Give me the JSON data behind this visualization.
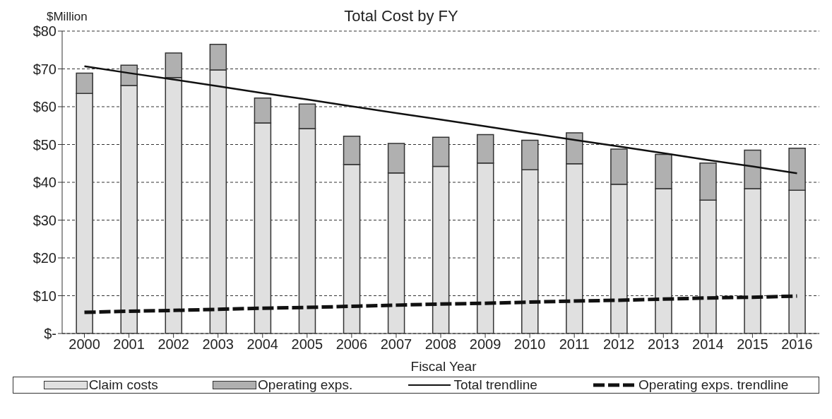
{
  "chart_data": {
    "type": "bar",
    "title": "Total Cost by FY",
    "ylabel": "$Million",
    "xlabel": "Fiscal Year",
    "categories": [
      "2000",
      "2001",
      "2002",
      "2003",
      "2004",
      "2005",
      "2006",
      "2007",
      "2008",
      "2009",
      "2010",
      "2011",
      "2012",
      "2013",
      "2014",
      "2015",
      "2016"
    ],
    "stacked": true,
    "series": [
      {
        "name": "Claim costs",
        "color": "#e0e0e0",
        "values": [
          63.5,
          65.6,
          67.7,
          69.7,
          55.7,
          54.2,
          44.7,
          42.5,
          44.2,
          45.1,
          43.3,
          44.9,
          39.5,
          38.3,
          35.3,
          38.3,
          37.9
        ]
      },
      {
        "name": "Operating exps.",
        "color": "#b0b0b0",
        "values": [
          5.4,
          5.4,
          6.5,
          6.8,
          6.6,
          6.5,
          7.5,
          7.8,
          7.7,
          7.5,
          7.8,
          8.2,
          9.3,
          9.1,
          9.8,
          10.2,
          11.1
        ]
      },
      {
        "name": "Total trendline",
        "type": "line",
        "color": "#111111",
        "line_style": "solid",
        "values": [
          70.7,
          68.9,
          67.2,
          65.4,
          63.6,
          61.9,
          60.1,
          58.3,
          56.6,
          54.8,
          53.0,
          51.2,
          49.5,
          47.7,
          45.9,
          44.2,
          42.4
        ]
      },
      {
        "name": "Operating exps. trendline",
        "type": "line",
        "color": "#111111",
        "line_style": "dashed",
        "values": [
          5.6,
          5.9,
          6.1,
          6.4,
          6.7,
          6.9,
          7.2,
          7.5,
          7.8,
          8.0,
          8.3,
          8.6,
          8.8,
          9.1,
          9.4,
          9.6,
          9.9
        ]
      }
    ],
    "ylim": [
      0,
      80
    ],
    "yticks": [
      {
        "value": 0,
        "label": "$-"
      },
      {
        "value": 10,
        "label": "$10"
      },
      {
        "value": 20,
        "label": "$20"
      },
      {
        "value": 30,
        "label": "$30"
      },
      {
        "value": 40,
        "label": "$40"
      },
      {
        "value": 50,
        "label": "$50"
      },
      {
        "value": 60,
        "label": "$60"
      },
      {
        "value": 70,
        "label": "$70"
      },
      {
        "value": 80,
        "label": "$80"
      }
    ],
    "grid": "y",
    "legend": "bottom",
    "marker": "none"
  }
}
